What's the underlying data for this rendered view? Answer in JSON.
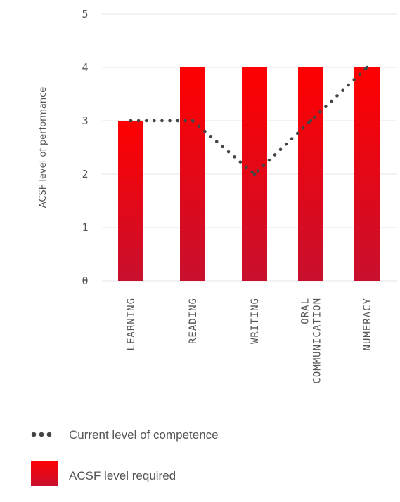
{
  "chart_data": {
    "type": "bar",
    "ylabel": "ACSF level of performance",
    "ylim": [
      0,
      5
    ],
    "yticks": [
      "0",
      "1",
      "2",
      "3",
      "4",
      "5"
    ],
    "grid": true,
    "categories": [
      [
        "LEARNING"
      ],
      [
        "READING"
      ],
      [
        "WRITING"
      ],
      [
        "ORAL",
        "COMMUNICATION"
      ],
      [
        "NUMERACY"
      ]
    ],
    "series": [
      {
        "name": "ACSF level required",
        "kind": "bar",
        "color_top": "#ff0000",
        "color_bottom": "#c8102e",
        "values": [
          3,
          4,
          4,
          4,
          4
        ]
      },
      {
        "name": "Current level of competence",
        "kind": "dotted-line",
        "color": "#444444",
        "values": [
          3,
          3,
          2,
          3,
          4
        ]
      }
    ],
    "legend_position": "bottom-left"
  }
}
